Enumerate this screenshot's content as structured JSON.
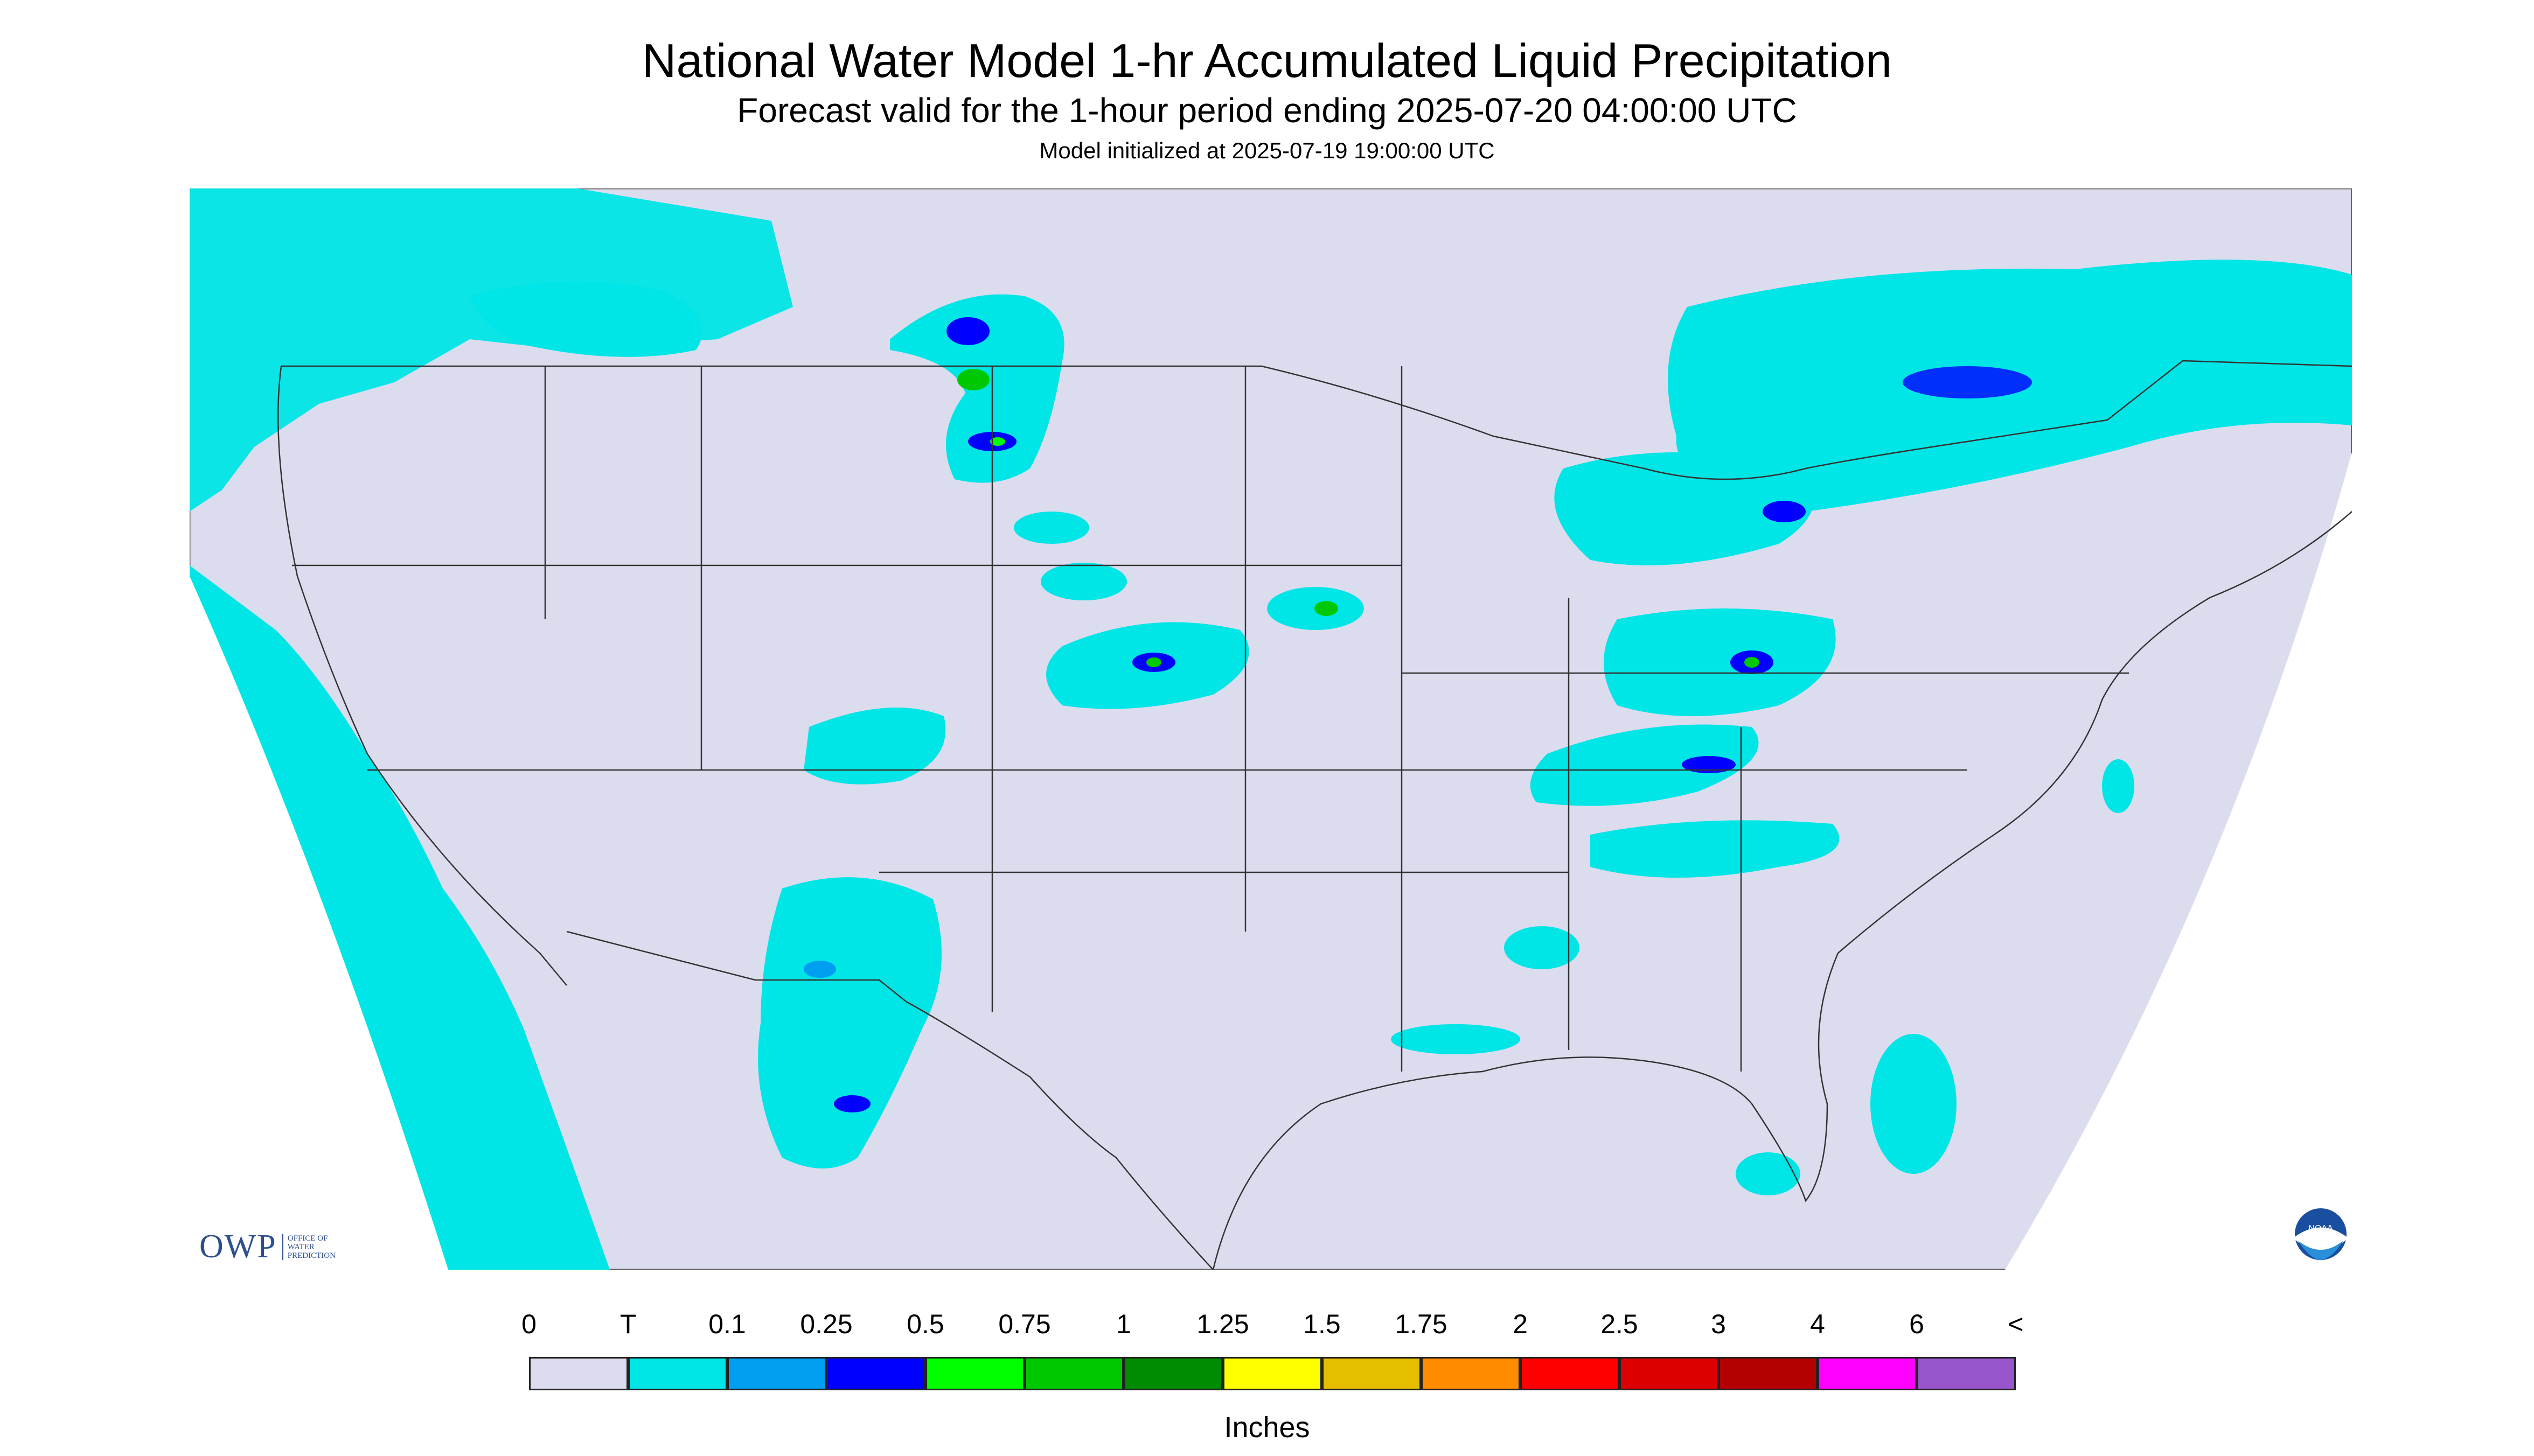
{
  "header": {
    "title": "National Water Model 1-hr Accumulated Liquid Precipitation",
    "subtitle": "Forecast valid for the 1-hour period ending 2025-07-20 04:00:00 UTC",
    "initialized": "Model initialized at 2025-07-19 19:00:00 UTC"
  },
  "map": {
    "background_color": "#dcdcef",
    "land_color": "#dcdcef",
    "outside_domain_color": "#ffffff",
    "trace_color": "#00e5e5"
  },
  "legend": {
    "labels": [
      "0",
      "T",
      "0.1",
      "0.25",
      "0.5",
      "0.75",
      "1",
      "1.25",
      "1.5",
      "1.75",
      "2",
      "2.5",
      "3",
      "4",
      "6",
      "<"
    ],
    "colors": [
      "#dcdcef",
      "#00e5e5",
      "#009ef0",
      "#0000ff",
      "#00ff00",
      "#00c800",
      "#008c00",
      "#ffff00",
      "#e6be00",
      "#ff8c00",
      "#ff0000",
      "#dc0000",
      "#b40000",
      "#ff00ff",
      "#9955cc"
    ],
    "units": "Inches"
  },
  "logos": {
    "owp_text": "OWP",
    "owp_subtext": [
      "OFFICE OF",
      "WATER",
      "PREDICTION"
    ],
    "noaa_text": "NOAA"
  }
}
